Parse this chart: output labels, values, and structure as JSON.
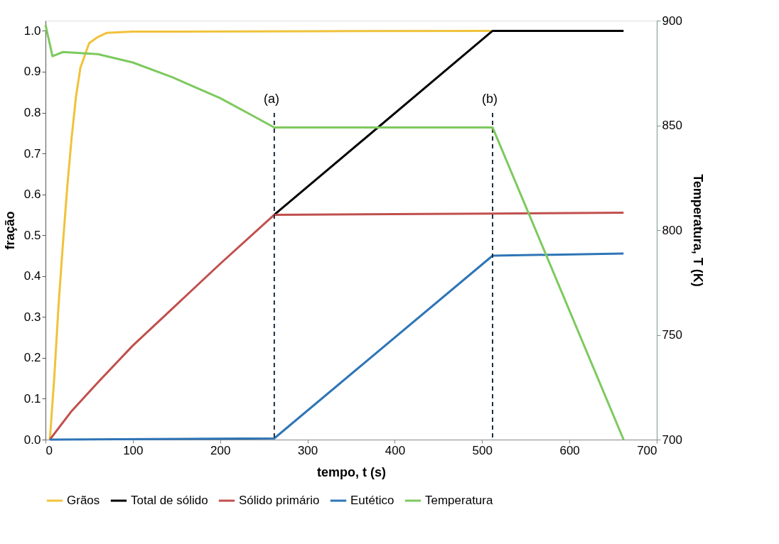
{
  "chart_data": {
    "type": "line",
    "xlabel": "tempo, t (s)",
    "ylabel": "fração",
    "y2label": "Temperatura, T (K)",
    "xlim": [
      0,
      700
    ],
    "xticks": [
      0,
      100,
      200,
      300,
      400,
      500,
      600,
      700
    ],
    "ylim": [
      0,
      1.025
    ],
    "yticks": [
      {
        "value": 0,
        "label": "0.0"
      },
      0.1,
      0.2,
      0.3,
      0.4,
      0.5,
      0.6,
      0.7,
      0.8,
      0.9,
      {
        "value": 1,
        "label": "1.0"
      }
    ],
    "y2lim": [
      700,
      900
    ],
    "y2ticks": [
      700,
      750,
      800,
      850,
      900
    ],
    "grid": false,
    "legend": "bottom",
    "marker": "none",
    "line_style": "solid",
    "series": [
      {
        "name": "Grãos",
        "color": "#f0c23a",
        "x": [
          5,
          10,
          15,
          20,
          25,
          30,
          35,
          40,
          50,
          60,
          70,
          100,
          300,
          510
        ],
        "values": [
          0,
          0.15,
          0.33,
          0.48,
          0.62,
          0.74,
          0.84,
          0.91,
          0.97,
          0.985,
          0.995,
          0.998,
          0.999,
          1.0
        ]
      },
      {
        "name": "Total de sólido",
        "color": "#000000",
        "x": [
          262,
          512,
          662
        ],
        "values": [
          0.55,
          1.0,
          1.0
        ]
      },
      {
        "name": "Sólido primário",
        "color": "#c0504d",
        "x": [
          5,
          30,
          60,
          100,
          150,
          200,
          262,
          512,
          662
        ],
        "values": [
          0,
          0.07,
          0.14,
          0.23,
          0.33,
          0.43,
          0.55,
          0.553,
          0.555
        ]
      },
      {
        "name": "Eutético",
        "color": "#2e75b6",
        "x": [
          5,
          262,
          512,
          662
        ],
        "values": [
          0,
          0.003,
          0.45,
          0.455
        ]
      },
      {
        "name": "Temperatura",
        "color": "#7dc95e",
        "axis": "y2",
        "x": [
          0,
          8,
          20,
          60,
          100,
          145,
          200,
          240,
          262,
          512,
          662
        ],
        "values": [
          898,
          883,
          885,
          884,
          880,
          873,
          863,
          854,
          849,
          849,
          700
        ]
      }
    ],
    "ref_lines": [
      {
        "axis": "x",
        "value": 262,
        "label": "(a)",
        "color": "#1f2d3d",
        "line_style": "dashed"
      },
      {
        "axis": "x",
        "value": 512,
        "label": "(b)",
        "color": "#1f2d3d",
        "line_style": "dashed"
      }
    ]
  }
}
